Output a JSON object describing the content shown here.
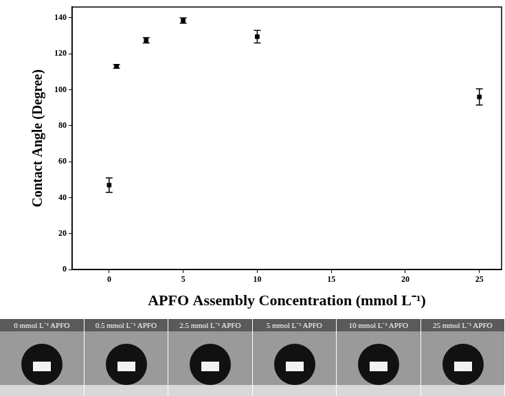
{
  "chart_data": {
    "type": "scatter",
    "x_label": "APFO Assembly Concentration (mmol L⁻¹)",
    "y_label": "Contact Angle (Degree)",
    "x": [
      0,
      0.5,
      2.5,
      5,
      10,
      25
    ],
    "values": [
      47,
      113,
      127.5,
      138.5,
      129.5,
      96
    ],
    "errors": [
      4,
      1,
      1.5,
      1.5,
      3.5,
      4.5
    ],
    "color": "#000000",
    "marker": "square",
    "xlim": [
      -2.5,
      26.5
    ],
    "xticks": [
      0,
      5,
      10,
      15,
      20,
      25
    ],
    "ylim": [
      0,
      146
    ],
    "yticks": [
      0,
      20,
      40,
      60,
      80,
      100,
      120,
      140
    ],
    "grid": false
  },
  "image_strip": {
    "labels": [
      "0 mmol L⁻¹ APFO",
      "0.5 mmol L⁻¹ APFO",
      "2.5 mmol L⁻¹ APFO",
      "5 mmol L⁻¹ APFO",
      "10 mmol L⁻¹ APFO",
      "25 mmol L⁻¹ APFO"
    ]
  }
}
